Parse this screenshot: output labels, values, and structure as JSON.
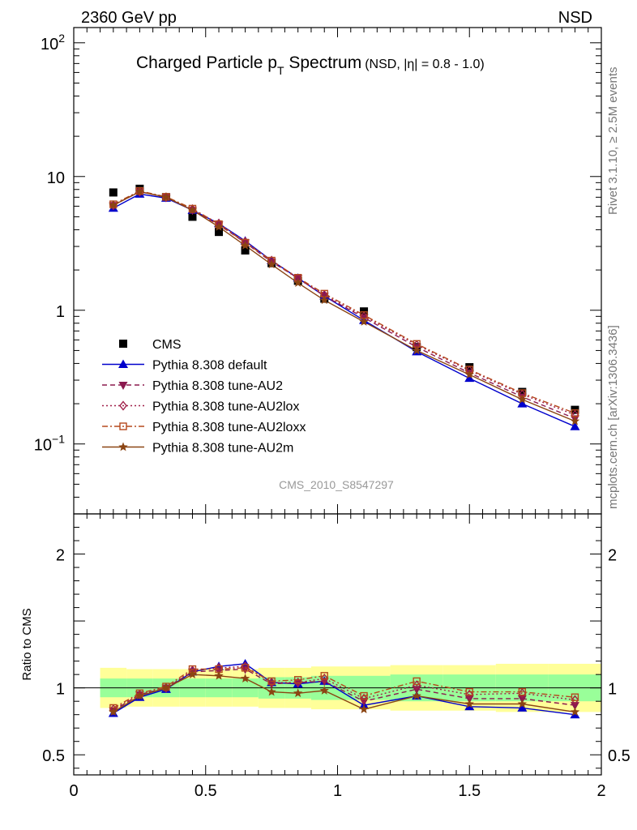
{
  "header": {
    "energy_label": "2360 GeV pp",
    "process_label": "NSD"
  },
  "side_labels": {
    "rivet": "Rivet 3.1.10, ≥ 2.5M events",
    "mcplots": "mcplots.cern.ch [arXiv:1306.3436]"
  },
  "colors": {
    "data": "#000000",
    "default": "#0000cc",
    "au2": "#8b1a4f",
    "au2lox": "#a0204a",
    "au2loxx": "#b5481c",
    "au2m": "#8b4513",
    "band_inner": "#99ff99",
    "band_outer": "#ffff99"
  },
  "chart_data": [
    {
      "type": "scatter",
      "panel": "main",
      "title_main": "Charged Particle p",
      "title_sub": "T",
      "title_rest": " Spectrum",
      "title_note": "(NSD, |η| = 0.8 - 1.0)",
      "watermark": "CMS_2010_S8547297",
      "yscale": "log",
      "xlim": [
        0,
        2
      ],
      "ylim": [
        0.03,
        130
      ],
      "yticks": [
        {
          "value": 0.1,
          "base": "10",
          "exp": "−1"
        },
        {
          "value": 1,
          "base": "1",
          "exp": ""
        },
        {
          "value": 10,
          "base": "10",
          "exp": ""
        },
        {
          "value": 100,
          "base": "10",
          "exp": "2"
        }
      ],
      "x": [
        0.15,
        0.25,
        0.35,
        0.45,
        0.55,
        0.65,
        0.75,
        0.85,
        0.95,
        1.1,
        1.3,
        1.5,
        1.7,
        1.9
      ],
      "series": [
        {
          "name": "CMS",
          "key": "data",
          "marker": "square",
          "line": "none",
          "values": [
            7.6,
            8.1,
            7.0,
            5.0,
            3.85,
            2.8,
            2.25,
            1.66,
            1.22,
            0.98,
            0.53,
            0.375,
            0.245,
            0.18
          ]
        },
        {
          "name": "Pythia 8.308 default",
          "key": "default",
          "marker": "triangle-up",
          "line": "solid",
          "values": [
            5.8,
            7.4,
            6.9,
            5.6,
            4.45,
            3.3,
            2.35,
            1.74,
            1.28,
            0.84,
            0.49,
            0.31,
            0.2,
            0.135
          ]
        },
        {
          "name": "Pythia 8.308 tune-AU2",
          "key": "au2",
          "marker": "triangle-down",
          "line": "dashed",
          "values": [
            6.1,
            7.7,
            7.0,
            5.6,
            4.35,
            3.2,
            2.3,
            1.74,
            1.28,
            0.88,
            0.53,
            0.34,
            0.225,
            0.155
          ]
        },
        {
          "name": "Pythia 8.308 tune-AU2lox",
          "key": "au2lox",
          "marker": "diamond-open",
          "line": "dotted",
          "values": [
            6.1,
            7.7,
            7.0,
            5.7,
            4.45,
            3.25,
            2.35,
            1.72,
            1.3,
            0.9,
            0.55,
            0.355,
            0.235,
            0.165
          ]
        },
        {
          "name": "Pythia 8.308 tune-AU2loxx",
          "key": "au2loxx",
          "marker": "square-open",
          "line": "dashdot",
          "values": [
            6.2,
            7.8,
            7.05,
            5.75,
            4.4,
            3.2,
            2.35,
            1.75,
            1.33,
            0.92,
            0.56,
            0.36,
            0.24,
            0.17
          ]
        },
        {
          "name": "Pythia 8.308 tune-AU2m",
          "key": "au2m",
          "marker": "star",
          "line": "solid",
          "values": [
            6.1,
            7.7,
            7.0,
            5.6,
            4.2,
            3.05,
            2.2,
            1.6,
            1.19,
            0.82,
            0.5,
            0.33,
            0.215,
            0.148
          ]
        }
      ]
    },
    {
      "type": "line",
      "panel": "ratio",
      "ylabel": "Ratio to CMS",
      "xlim": [
        0,
        2
      ],
      "ylim": [
        0.35,
        2.3
      ],
      "yticks": [
        0.5,
        1,
        2
      ],
      "xticks": [
        0,
        0.5,
        1,
        1.5,
        2
      ],
      "xtick_labels": [
        "0",
        "0.5",
        "1",
        "1.5",
        "2"
      ],
      "bin_edges": [
        0.1,
        0.2,
        0.3,
        0.4,
        0.5,
        0.6,
        0.7,
        0.8,
        0.9,
        1.0,
        1.2,
        1.4,
        1.6,
        1.8,
        2.0
      ],
      "band_inner": {
        "lo": [
          0.93,
          0.93,
          0.93,
          0.93,
          0.93,
          0.93,
          0.92,
          0.92,
          0.91,
          0.91,
          0.9,
          0.9,
          0.9,
          0.9
        ],
        "hi": [
          1.07,
          1.07,
          1.07,
          1.07,
          1.07,
          1.07,
          1.08,
          1.08,
          1.09,
          1.09,
          1.1,
          1.1,
          1.1,
          1.1
        ]
      },
      "band_outer": {
        "lo": [
          0.85,
          0.86,
          0.86,
          0.86,
          0.86,
          0.86,
          0.85,
          0.85,
          0.84,
          0.84,
          0.83,
          0.83,
          0.82,
          0.82
        ],
        "hi": [
          1.15,
          1.14,
          1.14,
          1.14,
          1.14,
          1.14,
          1.15,
          1.15,
          1.16,
          1.16,
          1.17,
          1.17,
          1.18,
          1.18
        ]
      },
      "series": [
        {
          "key": "default",
          "values": [
            0.81,
            0.93,
            0.99,
            1.12,
            1.16,
            1.18,
            1.04,
            1.03,
            1.05,
            0.87,
            0.94,
            0.86,
            0.85,
            0.8
          ]
        },
        {
          "key": "au2",
          "values": [
            0.83,
            0.95,
            1.0,
            1.12,
            1.13,
            1.14,
            1.03,
            1.04,
            1.05,
            0.9,
            0.99,
            0.92,
            0.92,
            0.87
          ]
        },
        {
          "key": "au2lox",
          "values": [
            0.84,
            0.95,
            1.0,
            1.13,
            1.15,
            1.16,
            1.04,
            1.04,
            1.07,
            0.92,
            1.02,
            0.95,
            0.96,
            0.91
          ]
        },
        {
          "key": "au2loxx",
          "values": [
            0.85,
            0.96,
            1.01,
            1.14,
            1.14,
            1.15,
            1.05,
            1.06,
            1.09,
            0.94,
            1.05,
            0.97,
            0.97,
            0.93
          ]
        },
        {
          "key": "au2m",
          "values": [
            0.82,
            0.94,
            1.0,
            1.1,
            1.09,
            1.07,
            0.97,
            0.96,
            0.98,
            0.84,
            0.94,
            0.88,
            0.88,
            0.82
          ]
        }
      ]
    }
  ]
}
